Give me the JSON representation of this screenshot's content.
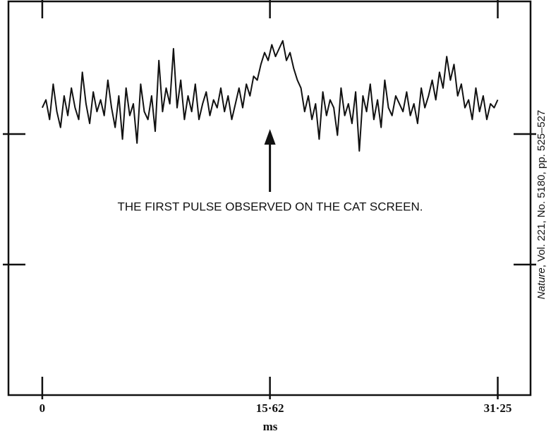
{
  "chart_data": {
    "type": "line",
    "annotation": "THE FIRST PULSE OBSERVED ON THE CAT SCREEN.",
    "xlabel": "ms",
    "source_journal": "Nature",
    "source_detail": ", Vol. 221, No. 5180, pp. 525–527",
    "xlim": [
      -2.32,
      33.5
    ],
    "ylim": [
      0,
      100
    ],
    "xticks": [
      0,
      {
        "value": 15.62,
        "label": "15·62"
      },
      {
        "value": 31.25,
        "label": "31·25"
      }
    ],
    "x": [
      0,
      0.25,
      0.5,
      0.75,
      1,
      1.25,
      1.5,
      1.75,
      2,
      2.25,
      2.5,
      2.75,
      3,
      3.25,
      3.5,
      3.75,
      4,
      4.25,
      4.5,
      4.75,
      5,
      5.25,
      5.5,
      5.75,
      6,
      6.25,
      6.5,
      6.75,
      7,
      7.25,
      7.5,
      7.75,
      8,
      8.25,
      8.5,
      8.75,
      9,
      9.25,
      9.5,
      9.75,
      10,
      10.25,
      10.5,
      10.75,
      11,
      11.25,
      11.5,
      11.75,
      12,
      12.25,
      12.5,
      12.75,
      13,
      13.25,
      13.5,
      13.75,
      14,
      14.25,
      14.5,
      14.75,
      15,
      15.25,
      15.5,
      15.75,
      16,
      16.25,
      16.5,
      16.75,
      17,
      17.25,
      17.5,
      17.75,
      18,
      18.25,
      18.5,
      18.75,
      19,
      19.25,
      19.5,
      19.75,
      20,
      20.25,
      20.5,
      20.75,
      21,
      21.25,
      21.5,
      21.75,
      22,
      22.25,
      22.5,
      22.75,
      23,
      23.25,
      23.5,
      23.75,
      24,
      24.25,
      24.5,
      24.75,
      25,
      25.25,
      25.5,
      25.75,
      26,
      26.25,
      26.5,
      26.75,
      27,
      27.25,
      27.5,
      27.75,
      28,
      28.25,
      28.5,
      28.75,
      29,
      29.25,
      29.5,
      29.75,
      30,
      30.25,
      30.5,
      30.75,
      31,
      31.25
    ],
    "series": [
      {
        "color": "#111111",
        "values": [
          73,
          75,
          70,
          79,
          72,
          68,
          76,
          71,
          78,
          73,
          70,
          82,
          74,
          69,
          77,
          72,
          75,
          71,
          80,
          73,
          68,
          76,
          65,
          78,
          71,
          74,
          64,
          79,
          72,
          70,
          76,
          67,
          85,
          72,
          78,
          74,
          88,
          73,
          80,
          70,
          76,
          72,
          79,
          70,
          74,
          77,
          71,
          75,
          73,
          78,
          72,
          76,
          70,
          74,
          78,
          73,
          79,
          76,
          81,
          80,
          84,
          87,
          85,
          89,
          86,
          88,
          90,
          85,
          87,
          83,
          80,
          78,
          72,
          76,
          70,
          74,
          65,
          77,
          71,
          75,
          73,
          66,
          78,
          71,
          74,
          69,
          77,
          62,
          76,
          72,
          79,
          70,
          75,
          68,
          80,
          73,
          71,
          76,
          74,
          72,
          77,
          71,
          74,
          69,
          78,
          73,
          76,
          80,
          75,
          82,
          78,
          86,
          80,
          84,
          76,
          79,
          73,
          75,
          70,
          78,
          72,
          76,
          70,
          74,
          73,
          75
        ]
      }
    ]
  }
}
